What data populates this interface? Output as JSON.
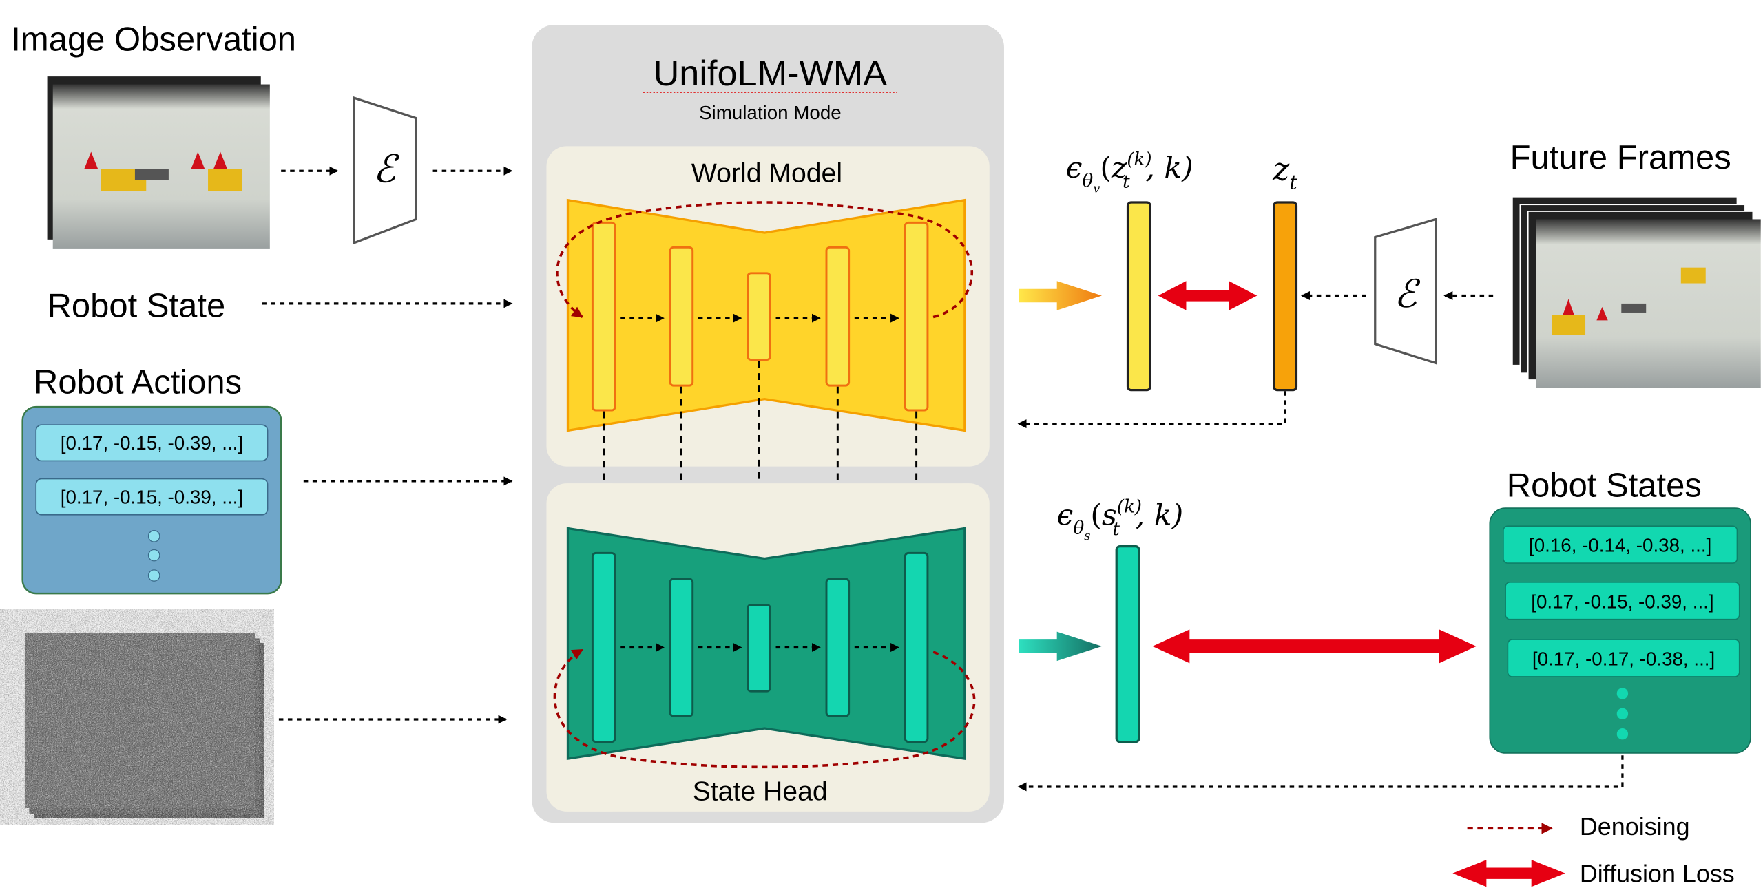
{
  "inputs": {
    "image_observation": "Image Observation",
    "robot_state": "Robot State",
    "robot_actions": {
      "title": "Robot Actions",
      "items": [
        "[0.17, -0.15, -0.39, ...]",
        "[0.17, -0.15, -0.39, ...]"
      ]
    },
    "encoder_symbol": "ℰ"
  },
  "model": {
    "title": "UnifoLM-WMA",
    "mode": "Simulation Mode",
    "world_model": "World Model",
    "state_head": "State Head"
  },
  "outputs": {
    "video_noise_label": {
      "eps": "ϵ",
      "sub": "θ",
      "subsub": "v",
      "open": "(",
      "var": "z",
      "var_sub": "t",
      "var_sup": "(k)",
      "rest": ", k)"
    },
    "latent_label": {
      "var": "z",
      "sub": "t"
    },
    "state_noise_label": {
      "eps": "ϵ",
      "sub": "θ",
      "subsub": "s",
      "open": "(",
      "var": "s",
      "var_sub": "t",
      "var_sup": "(k)",
      "rest": ", k)"
    },
    "future_frames": "Future Frames",
    "robot_states": {
      "title": "Robot States",
      "items": [
        "[0.16, -0.14, -0.38, ...]",
        "[0.17, -0.15, -0.39, ...]",
        "[0.17, -0.17, -0.38, ...]"
      ]
    }
  },
  "legend": {
    "denoising": "Denoising",
    "diffusion_loss": "Diffusion Loss"
  },
  "colors": {
    "world_model": "#ffd42a",
    "state_head": "#17a07c",
    "loss": "#e60012",
    "denoising": "#a00000"
  }
}
